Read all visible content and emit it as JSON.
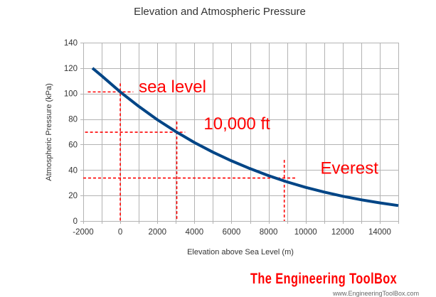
{
  "chart_data": {
    "type": "line",
    "title": "Elevation and Atmospheric Pressure",
    "xlabel": "Elevation above Sea Level (m)",
    "ylabel": "Atmospheric Pressure (kPa)",
    "xlim": [
      -2000,
      15000
    ],
    "ylim": [
      0,
      140
    ],
    "xticks": [
      -2000,
      0,
      2000,
      4000,
      6000,
      8000,
      10000,
      12000,
      14000
    ],
    "yticks": [
      0,
      20,
      40,
      60,
      80,
      100,
      120,
      140
    ],
    "x_minor_grid_step": 1000,
    "grid": true,
    "series": [
      {
        "name": "Atmospheric Pressure",
        "color": "#004586",
        "x": [
          -1500,
          -1000,
          0,
          1000,
          2000,
          3000,
          4000,
          5000,
          6000,
          7000,
          8000,
          9000,
          10000,
          11000,
          12000,
          13000,
          14000,
          15000
        ],
        "y": [
          120.0,
          113.9,
          101.3,
          89.9,
          79.5,
          70.1,
          61.6,
          54.0,
          47.2,
          41.1,
          35.6,
          30.7,
          26.4,
          22.7,
          19.4,
          16.6,
          14.2,
          12.1
        ]
      }
    ],
    "reference_lines": [
      {
        "name": "sea-level",
        "label": "sea level",
        "elevation_m": 0,
        "pressure_kPa": 101.3,
        "color": "#ff0000",
        "label_x": 1000,
        "label_y": 101
      },
      {
        "name": "10000-ft",
        "label": "10,000 ft",
        "elevation_m": 3048,
        "pressure_kPa": 69.7,
        "color": "#ff0000",
        "label_x": 4500,
        "label_y": 72
      },
      {
        "name": "everest",
        "label": "Everest",
        "elevation_m": 8848,
        "pressure_kPa": 33.7,
        "color": "#ff0000",
        "label_x": 10800,
        "label_y": 37
      }
    ]
  },
  "branding": {
    "logo_text": "The Engineering ToolBox",
    "url_text": "www.EngineeringToolBox.com"
  }
}
